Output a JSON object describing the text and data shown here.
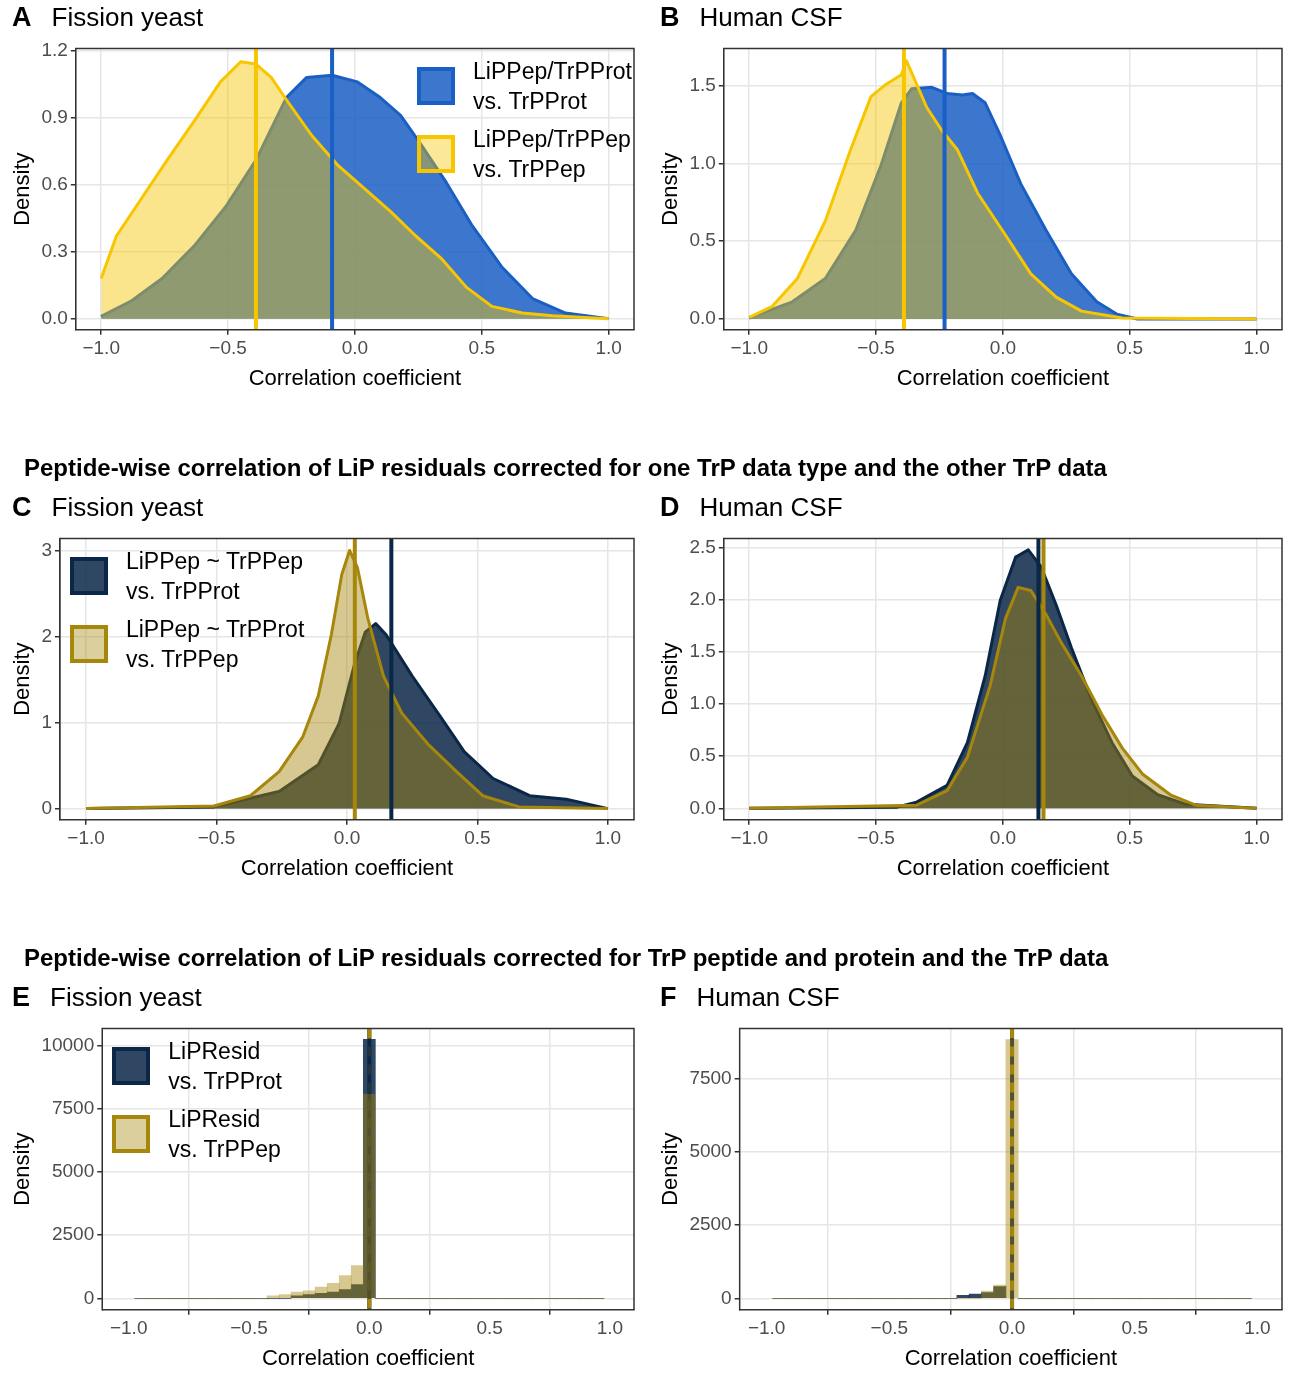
{
  "chart_data": [
    {
      "type": "area",
      "title": "Fission yeast",
      "annotations": [
        "A"
      ],
      "xlabel": "Correlation coefficient",
      "ylabel": "Density",
      "xlim": [
        -1.1,
        1.1
      ],
      "ylim": [
        -0.05,
        1.21
      ],
      "xticks": [
        {
          "value": -1,
          "label": "−1.0"
        },
        {
          "value": -0.5,
          "label": "−0.5"
        },
        {
          "value": 0,
          "label": "0.0"
        },
        {
          "value": 0.5,
          "label": "0.5"
        },
        {
          "value": 1,
          "label": "1.0"
        }
      ],
      "yticks": [
        {
          "value": 0,
          "label": "0.0"
        },
        0.3,
        0.6,
        0.9,
        1.2
      ],
      "grid": true,
      "legend": "top right",
      "series": [
        {
          "name": "LiPPep/TrPProt vs. TrPProt",
          "color": "#1a5fc4",
          "x": [
            -1,
            -0.88,
            -0.76,
            -0.63,
            -0.51,
            -0.39,
            -0.27,
            -0.19,
            -0.09,
            0.01,
            0.1,
            0.18,
            0.26,
            0.36,
            0.46,
            0.58,
            0.7,
            0.83,
            1
          ],
          "values": [
            0.01,
            0.08,
            0.18,
            0.33,
            0.5,
            0.71,
            0.99,
            1.08,
            1.09,
            1.06,
            0.99,
            0.91,
            0.78,
            0.61,
            0.42,
            0.23,
            0.09,
            0.025,
            0
          ]
        },
        {
          "name": "LiPPep/TrPPep vs. TrPPep",
          "color": "#f7c600",
          "x": [
            -1,
            -0.94,
            -0.84,
            -0.74,
            -0.63,
            -0.53,
            -0.45,
            -0.39,
            -0.33,
            -0.27,
            -0.17,
            -0.07,
            0.03,
            0.14,
            0.24,
            0.34,
            0.44,
            0.54,
            0.66,
            0.78,
            1
          ],
          "values": [
            0.18,
            0.37,
            0.54,
            0.71,
            0.89,
            1.06,
            1.15,
            1.14,
            1.08,
            0.98,
            0.82,
            0.69,
            0.59,
            0.48,
            0.37,
            0.27,
            0.14,
            0.055,
            0.025,
            0.013,
            0
          ]
        }
      ],
      "ref_lines": [
        {
          "axis": "x",
          "value": -0.09,
          "color": "#1a5fc4"
        },
        {
          "axis": "x",
          "value": -0.39,
          "color": "#f7c600"
        }
      ]
    },
    {
      "type": "area",
      "title": "Human CSF",
      "annotations": [
        "B"
      ],
      "xlabel": "Correlation coefficient",
      "ylabel": "Density",
      "xlim": [
        -1.1,
        1.1
      ],
      "ylim": [
        -0.07,
        1.74
      ],
      "xticks": [
        {
          "value": -1,
          "label": "−1.0"
        },
        {
          "value": -0.5,
          "label": "−0.5"
        },
        {
          "value": 0,
          "label": "0.0"
        },
        {
          "value": 0.5,
          "label": "0.5"
        },
        {
          "value": 1,
          "label": "1.0"
        }
      ],
      "yticks": [
        {
          "value": 0,
          "label": "0.0"
        },
        0.5,
        {
          "value": 1,
          "label": "1.0"
        },
        1.5
      ],
      "grid": true,
      "series": [
        {
          "color": "#1a5fc4",
          "x": [
            -1,
            -0.83,
            -0.7,
            -0.58,
            -0.48,
            -0.4,
            -0.36,
            -0.28,
            -0.22,
            -0.16,
            -0.12,
            -0.07,
            -0.01,
            0.07,
            0.17,
            0.27,
            0.37,
            0.45,
            0.53,
            1
          ],
          "values": [
            0.006,
            0.11,
            0.26,
            0.57,
            0.99,
            1.39,
            1.48,
            1.49,
            1.45,
            1.44,
            1.45,
            1.39,
            1.18,
            0.87,
            0.57,
            0.29,
            0.11,
            0.03,
            0,
            0
          ]
        },
        {
          "color": "#f7c600",
          "x": [
            -1,
            -0.91,
            -0.81,
            -0.7,
            -0.6,
            -0.52,
            -0.46,
            -0.4,
            -0.38,
            -0.34,
            -0.3,
            -0.24,
            -0.18,
            -0.1,
            0.01,
            0.11,
            0.21,
            0.31,
            0.47,
            1
          ],
          "values": [
            0.01,
            0.08,
            0.26,
            0.63,
            1.09,
            1.43,
            1.51,
            1.57,
            1.66,
            1.51,
            1.36,
            1.21,
            1.09,
            0.81,
            0.54,
            0.29,
            0.14,
            0.05,
            0.006,
            0
          ]
        }
      ],
      "ref_lines": [
        {
          "axis": "x",
          "value": -0.23,
          "color": "#1a5fc4"
        },
        {
          "axis": "x",
          "value": -0.39,
          "color": "#f7c600"
        }
      ]
    },
    {
      "type": "other",
      "title": "Peptide-wise correlation of LiP residuals corrected for one TrP data type and the other TrP data"
    },
    {
      "type": "area",
      "title": "Fission yeast",
      "annotations": [
        "C"
      ],
      "xlabel": "Correlation coefficient",
      "ylabel": "Density",
      "xlim": [
        -1.1,
        1.1
      ],
      "ylim": [
        -0.13,
        3.14
      ],
      "xticks": [
        {
          "value": -1,
          "label": "−1.0"
        },
        {
          "value": -0.5,
          "label": "−0.5"
        },
        {
          "value": 0,
          "label": "0.0"
        },
        {
          "value": 0.5,
          "label": "0.5"
        },
        {
          "value": 1,
          "label": "1.0"
        }
      ],
      "yticks": [
        0,
        1,
        2,
        3
      ],
      "grid": true,
      "legend": "top left",
      "series": [
        {
          "name": "LiPPep ~ TrPPep vs. TrPProt",
          "color": "#0b2747",
          "x": [
            -1,
            -0.51,
            -0.26,
            -0.11,
            -0.03,
            0.03,
            0.07,
            0.11,
            0.15,
            0.25,
            0.36,
            0.45,
            0.56,
            0.7,
            0.84,
            1
          ],
          "values": [
            0,
            0.02,
            0.2,
            0.51,
            0.99,
            1.69,
            2.05,
            2.15,
            2.02,
            1.54,
            1.06,
            0.66,
            0.35,
            0.15,
            0.11,
            0
          ]
        },
        {
          "name": "LiPPep ~ TrPProt vs. TrPPep",
          "color": "#a6860b",
          "x": [
            -1,
            -0.51,
            -0.37,
            -0.26,
            -0.17,
            -0.11,
            -0.06,
            -0.02,
            0.01,
            0.04,
            0.08,
            0.14,
            0.21,
            0.31,
            0.42,
            0.52,
            0.66,
            1
          ],
          "values": [
            0,
            0.03,
            0.15,
            0.43,
            0.83,
            1.31,
            2.02,
            2.72,
            3,
            2.8,
            2.21,
            1.54,
            1.11,
            0.75,
            0.43,
            0.15,
            0.02,
            0
          ]
        }
      ],
      "ref_lines": [
        {
          "axis": "x",
          "value": 0.17,
          "color": "#0b2747"
        },
        {
          "axis": "x",
          "value": 0.03,
          "color": "#a6860b"
        }
      ]
    },
    {
      "type": "area",
      "title": "Human CSF",
      "annotations": [
        "D"
      ],
      "xlabel": "Correlation coefficient",
      "ylabel": "Density",
      "xlim": [
        -1.1,
        1.1
      ],
      "ylim": [
        -0.11,
        2.59
      ],
      "xticks": [
        {
          "value": -1,
          "label": "−1.0"
        },
        {
          "value": -0.5,
          "label": "−0.5"
        },
        {
          "value": 0,
          "label": "0.0"
        },
        {
          "value": 0.5,
          "label": "0.5"
        },
        {
          "value": 1,
          "label": "1.0"
        }
      ],
      "yticks": [
        {
          "value": 0,
          "label": "0.0"
        },
        0.5,
        {
          "value": 1,
          "label": "1.0"
        },
        1.5,
        {
          "value": 2,
          "label": "2.0"
        },
        2.5
      ],
      "grid": true,
      "series": [
        {
          "color": "#0b2747",
          "x": [
            -1,
            -0.42,
            -0.34,
            -0.22,
            -0.14,
            -0.07,
            -0.01,
            0.05,
            0.1,
            0.15,
            0.21,
            0.27,
            0.35,
            0.43,
            0.51,
            0.61,
            0.72,
            1
          ],
          "values": [
            0,
            0.01,
            0.06,
            0.22,
            0.63,
            1.27,
            2,
            2.41,
            2.48,
            2.32,
            1.95,
            1.54,
            1.04,
            0.63,
            0.31,
            0.13,
            0.04,
            0
          ]
        },
        {
          "color": "#a6860b",
          "x": [
            -1,
            -0.34,
            -0.22,
            -0.14,
            -0.05,
            0.01,
            0.06,
            0.11,
            0.17,
            0.23,
            0.31,
            0.39,
            0.47,
            0.55,
            0.66,
            0.76,
            1
          ],
          "values": [
            0,
            0.03,
            0.17,
            0.49,
            1.18,
            1.82,
            2.12,
            2.09,
            1.86,
            1.59,
            1.27,
            0.9,
            0.58,
            0.33,
            0.13,
            0.03,
            0
          ]
        }
      ],
      "ref_lines": [
        {
          "axis": "x",
          "value": 0.14,
          "color": "#0b2747"
        },
        {
          "axis": "x",
          "value": 0.16,
          "color": "#a6860b"
        }
      ]
    },
    {
      "type": "other",
      "title": "Peptide-wise correlation of LiP residuals corrected for TrP peptide and protein and the TrP data"
    },
    {
      "type": "histogram",
      "title": "Fission yeast",
      "annotations": [
        "E"
      ],
      "xlabel": "Correlation coefficient",
      "ylabel": "Density",
      "xlim": [
        -1.11,
        1.1
      ],
      "ylim": [
        -450,
        10680
      ],
      "xticks": [
        {
          "value": -1,
          "label": "−1.0"
        },
        {
          "value": -0.5,
          "label": "−0.5"
        },
        {
          "value": 0,
          "label": "0.0"
        },
        {
          "value": 0.5,
          "label": "0.5"
        },
        {
          "value": 1,
          "label": "1.0"
        }
      ],
      "yticks": [
        0,
        2500,
        5000,
        7500,
        10000
      ],
      "grid": true,
      "legend": "top left",
      "bins": [
        -0.975,
        -0.925,
        -0.875,
        -0.825,
        -0.775,
        -0.725,
        -0.675,
        -0.625,
        -0.575,
        -0.525,
        -0.475,
        -0.425,
        -0.375,
        -0.325,
        -0.275,
        -0.225,
        -0.175,
        -0.125,
        -0.075,
        -0.025,
        0.025,
        0.075,
        0.125,
        0.175,
        0.225,
        0.275,
        0.325,
        0.375,
        0.425,
        0.475,
        0.525,
        0.575,
        0.625,
        0.675,
        0.725,
        0.775,
        0.825,
        0.875,
        0.925,
        0.975
      ],
      "series": [
        {
          "name": "LiPResid vs. TrPProt",
          "color": "#0b2747",
          "values": [
            0,
            0,
            0,
            0,
            0,
            0,
            0,
            0,
            0,
            0,
            0,
            0,
            0,
            100,
            150,
            200,
            250,
            350,
            550,
            10250,
            0,
            0,
            0,
            0,
            0,
            0,
            0,
            0,
            0,
            0,
            0,
            0,
            0,
            0,
            0,
            0,
            0,
            0,
            0
          ]
        },
        {
          "name": "LiPResid vs. TrPPep",
          "color": "#a6860b",
          "values": [
            0,
            0,
            0,
            0,
            0,
            0,
            0,
            0,
            0,
            0,
            0,
            100,
            150,
            250,
            300,
            450,
            600,
            900,
            1300,
            8080,
            0,
            0,
            0,
            0,
            0,
            0,
            0,
            0,
            0,
            0,
            0,
            0,
            0,
            0,
            0,
            0,
            0,
            0,
            0
          ]
        }
      ],
      "ref_lines": [
        {
          "axis": "x",
          "value": 0,
          "color": "#0b2747"
        },
        {
          "axis": "x",
          "value": 0,
          "color": "#a6860b",
          "line_style": "dashed"
        }
      ]
    },
    {
      "type": "histogram",
      "title": "Human CSF",
      "annotations": [
        "F"
      ],
      "xlabel": "Correlation coefficient",
      "ylabel": "Density",
      "xlim": [
        -1.11,
        1.1
      ],
      "ylim": [
        -390,
        9220
      ],
      "xticks": [
        {
          "value": -1,
          "label": "−1.0"
        },
        {
          "value": -0.5,
          "label": "−0.5"
        },
        {
          "value": 0,
          "label": "0.0"
        },
        {
          "value": 0.5,
          "label": "0.5"
        },
        {
          "value": 1,
          "label": "1.0"
        }
      ],
      "yticks": [
        0,
        2500,
        5000,
        7500
      ],
      "grid": true,
      "bins": [
        -0.975,
        -0.925,
        -0.875,
        -0.825,
        -0.775,
        -0.725,
        -0.675,
        -0.625,
        -0.575,
        -0.525,
        -0.475,
        -0.425,
        -0.375,
        -0.325,
        -0.275,
        -0.225,
        -0.175,
        -0.125,
        -0.075,
        -0.025,
        0.025,
        0.075,
        0.125,
        0.175,
        0.225,
        0.275,
        0.325,
        0.375,
        0.425,
        0.475,
        0.525,
        0.575,
        0.625,
        0.675,
        0.725,
        0.775,
        0.825,
        0.875,
        0.925,
        0.975
      ],
      "series": [
        {
          "color": "#0b2747",
          "values": [
            0,
            0,
            0,
            0,
            0,
            0,
            0,
            0,
            0,
            0,
            0,
            0,
            0,
            0,
            0,
            100,
            150,
            200,
            400,
            null,
            0,
            0,
            0,
            0,
            0,
            0,
            0,
            0,
            0,
            0,
            0,
            0,
            0,
            0,
            0,
            0,
            0,
            0,
            0
          ]
        },
        {
          "color": "#a6860b",
          "values": [
            0,
            0,
            0,
            0,
            0,
            0,
            0,
            0,
            0,
            0,
            0,
            0,
            0,
            0,
            0,
            0,
            0,
            250,
            450,
            8840,
            0,
            0,
            0,
            0,
            0,
            0,
            0,
            0,
            0,
            0,
            0,
            0,
            0,
            0,
            0,
            0,
            0,
            0,
            0
          ]
        }
      ],
      "ref_lines": [
        {
          "axis": "x",
          "value": 0,
          "color": "#0b2747"
        },
        {
          "axis": "x",
          "value": 0,
          "color": "#a6860b",
          "line_style": "dashed"
        }
      ]
    }
  ]
}
